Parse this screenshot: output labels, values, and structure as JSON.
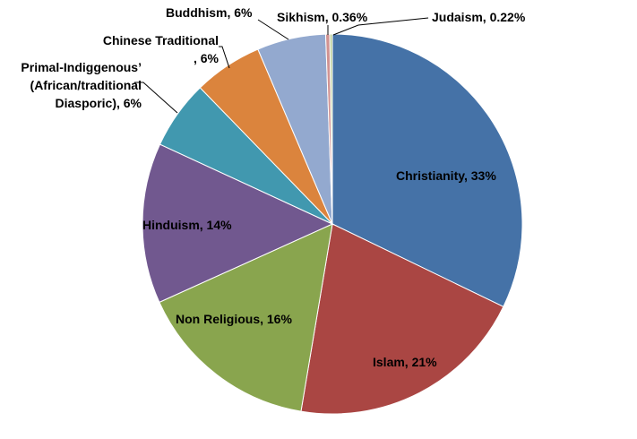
{
  "chart_data": {
    "type": "pie",
    "title": "",
    "slices": [
      {
        "name": "Christianity",
        "value": 33,
        "label": "Christianity, 33%",
        "color": "#4572A7"
      },
      {
        "name": "Islam",
        "value": 21,
        "label": "Islam, 21%",
        "color": "#AA4643"
      },
      {
        "name": "Non Religious",
        "value": 16,
        "label": "Non Religious, 16%",
        "color": "#89A54E"
      },
      {
        "name": "Hinduism",
        "value": 14,
        "label": "Hinduism, 14%",
        "color": "#71588F"
      },
      {
        "name": "Primal-Indiggenous’ (African/traditional Diasporic)",
        "value": 6,
        "label": "Primal-Indiggenous’ (African/traditional Diasporic), 6%",
        "color": "#4198AF"
      },
      {
        "name": "Chinese Traditional",
        "value": 6,
        "label": "Chinese Traditional, 6%",
        "color": "#DB843D"
      },
      {
        "name": "Buddhism",
        "value": 6,
        "label": "Buddhism, 6%",
        "color": "#93A9CF"
      },
      {
        "name": "Sikhism",
        "value": 0.36,
        "label": "Sikhism, 0.36%",
        "color": "#D19392"
      },
      {
        "name": "Judaism",
        "value": 0.22,
        "label": "Judaism, 0.22%",
        "color": "#B9CD96"
      }
    ],
    "labels": {
      "christianity": "Christianity, 33%",
      "islam": "Islam, 21%",
      "non_religious": "Non Religious, 16%",
      "hinduism": "Hinduism, 14%",
      "primal_line1": "Primal-Indiggenous’",
      "primal_line2": "(African/traditional",
      "primal_line3": "Diasporic), 6%",
      "chinese_line1": "Chinese Traditional",
      "chinese_line2": ", 6%",
      "buddhism": "Buddhism, 6%",
      "sikhism": "Sikhism, 0.36%",
      "judaism": "Judaism, 0.22%"
    },
    "legend": "none"
  }
}
